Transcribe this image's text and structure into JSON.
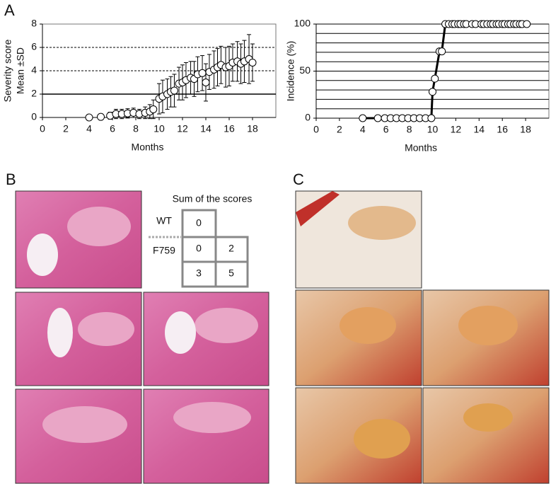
{
  "panels": [
    "A",
    "B",
    "C"
  ],
  "score_table": {
    "title": "Sum of the scores",
    "row_labels": [
      "WT",
      "F759"
    ],
    "cells": [
      [
        0
      ],
      [
        0,
        2
      ],
      [
        3,
        5
      ]
    ]
  },
  "chart_data": [
    {
      "type": "scatter",
      "ylabel": [
        "Severity score",
        "Mean ±SD"
      ],
      "xlabel": "Months",
      "x": [
        4.0,
        5.0,
        5.8,
        6.3,
        6.8,
        7.3,
        7.8,
        8.3,
        8.8,
        9.2,
        9.5,
        10.0,
        10.3,
        10.7,
        11.0,
        11.3,
        11.7,
        12.0,
        12.3,
        12.7,
        13.0,
        13.3,
        13.7,
        14.0,
        14.3,
        14.7,
        15.0,
        15.3,
        15.7,
        16.0,
        16.3,
        16.7,
        17.0,
        17.3,
        17.7,
        18.0
      ],
      "values": [
        0,
        0.05,
        0.15,
        0.3,
        0.3,
        0.35,
        0.4,
        0.3,
        0.4,
        0.5,
        0.7,
        1.6,
        1.8,
        2.0,
        2.2,
        2.3,
        2.9,
        3.0,
        3.2,
        3.4,
        3.3,
        3.7,
        3.8,
        3.0,
        3.9,
        4.1,
        4.3,
        4.5,
        4.3,
        4.4,
        4.7,
        4.8,
        4.6,
        4.8,
        5.0,
        4.7
      ],
      "errors": [
        0,
        0.1,
        0.3,
        0.4,
        0.4,
        0.4,
        0.4,
        0.4,
        0.5,
        0.6,
        0.8,
        1.3,
        1.4,
        1.3,
        1.3,
        1.4,
        1.4,
        1.5,
        1.5,
        1.4,
        1.5,
        1.5,
        1.5,
        1.6,
        1.5,
        1.6,
        1.6,
        1.6,
        1.7,
        1.7,
        1.6,
        1.7,
        1.7,
        1.8,
        2.1,
        1.6
      ],
      "xlim": [
        0,
        20
      ],
      "xticks": [
        0,
        2,
        4,
        6,
        8,
        10,
        12,
        14,
        16,
        18
      ],
      "ylim": [
        0,
        8
      ],
      "yticks": [
        0,
        2,
        4,
        6,
        8
      ],
      "hlines": [
        {
          "value": 2,
          "style": "solid"
        },
        {
          "value": 4,
          "style": "dashed"
        },
        {
          "value": 6,
          "style": "dashed"
        }
      ],
      "color": "#000000",
      "marker_fill": "#ffffff"
    },
    {
      "type": "line",
      "ylabel": "Incidence (%)",
      "xlabel": "Months",
      "x": [
        4.0,
        5.3,
        5.9,
        6.4,
        6.9,
        7.4,
        7.9,
        8.4,
        8.9,
        9.4,
        9.9,
        10.0,
        10.2,
        10.6,
        10.8,
        11.1,
        11.4,
        11.7,
        11.9,
        12.2,
        12.4,
        12.7,
        12.9,
        13.4,
        13.7,
        14.2,
        14.4,
        14.7,
        15.0,
        15.2,
        15.5,
        15.7,
        16.0,
        16.2,
        16.5,
        16.7,
        17.0,
        17.2,
        17.5,
        17.7,
        18.1
      ],
      "values": [
        0,
        0,
        0,
        0,
        0,
        0,
        0,
        0,
        0,
        0,
        0,
        28,
        42,
        71,
        71,
        100,
        100,
        100,
        100,
        100,
        100,
        100,
        100,
        100,
        100,
        100,
        100,
        100,
        100,
        100,
        100,
        100,
        100,
        100,
        100,
        100,
        100,
        100,
        100,
        100,
        100
      ],
      "xlim": [
        0,
        20
      ],
      "xticks": [
        0,
        2,
        4,
        6,
        8,
        10,
        12,
        14,
        16,
        18
      ],
      "ylim": [
        0,
        100
      ],
      "yticks": [
        0,
        50,
        100
      ],
      "ygrid": [
        0,
        10,
        20,
        30,
        40,
        50,
        60,
        70,
        80,
        90,
        100
      ],
      "color": "#000000",
      "marker_fill": "#ffffff"
    }
  ]
}
